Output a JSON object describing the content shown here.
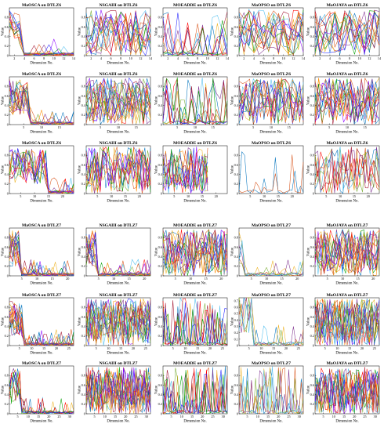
{
  "chart_data": [
    {
      "type": "line",
      "title": "MaOSCA on DTLZ6",
      "xlabel": "Dimension No.",
      "ylabel": "Value",
      "xlim": [
        1,
        14
      ],
      "ylim": [
        0,
        1
      ],
      "xticks": [
        2,
        4,
        6,
        8,
        10,
        12,
        14
      ],
      "yticks": [
        0,
        0.2,
        0.4,
        0.6,
        0.8
      ],
      "series_count": 14,
      "pattern": "drop",
      "first_dims": 3
    },
    {
      "type": "line",
      "title": "NSGAIII on DTLZ6",
      "xlabel": "Dimension No.",
      "ylabel": "Value",
      "xlim": [
        1,
        14
      ],
      "ylim": [
        0,
        1
      ],
      "xticks": [
        2,
        4,
        6,
        8,
        10,
        12,
        14
      ],
      "yticks": [
        0,
        0.2,
        0.4,
        0.6,
        0.8
      ],
      "series_count": 14,
      "pattern": "random"
    },
    {
      "type": "line",
      "title": "MOEADDE on DTLZ6",
      "xlabel": "Dimension No.",
      "ylabel": "Value",
      "xlim": [
        1,
        14
      ],
      "ylim": [
        0,
        1
      ],
      "xticks": [
        2,
        4,
        6,
        8,
        10,
        12,
        14
      ],
      "yticks": [
        0,
        0.2,
        0.4,
        0.6,
        0.8
      ],
      "series_count": 10,
      "pattern": "sparse"
    },
    {
      "type": "line",
      "title": "MaOPSO on DTLZ6",
      "xlabel": "Dimension No.",
      "ylabel": "Value",
      "xlim": [
        1,
        14
      ],
      "ylim": [
        0,
        1
      ],
      "xticks": [
        2,
        4,
        6,
        8,
        10,
        12,
        14
      ],
      "yticks": [
        0,
        0.2,
        0.4,
        0.6,
        0.8
      ],
      "series_count": 14,
      "pattern": "random"
    },
    {
      "type": "line",
      "title": "MaOJAYA on DTLZ6",
      "xlabel": "Dimension No.",
      "ylabel": "Value",
      "xlim": [
        1,
        14
      ],
      "ylim": [
        0,
        1
      ],
      "xticks": [
        2,
        4,
        6,
        8,
        10,
        12,
        14
      ],
      "yticks": [
        0,
        0.2,
        0.4,
        0.6,
        0.8
      ],
      "series_count": 14,
      "pattern": "random"
    },
    {
      "type": "line",
      "title": "MaOSCA on DTLZ6",
      "xlabel": "Dimension No.",
      "ylabel": "Value",
      "xlim": [
        1,
        19
      ],
      "ylim": [
        0,
        1
      ],
      "xticks": [
        5,
        10,
        15
      ],
      "yticks": [
        0,
        0.2,
        0.4,
        0.6,
        0.8
      ],
      "series_count": 16,
      "pattern": "drop",
      "first_dims": 6
    },
    {
      "type": "line",
      "title": "NSGAIII on DTLZ6",
      "xlabel": "Dimension No.",
      "ylabel": "Value",
      "xlim": [
        1,
        19
      ],
      "ylim": [
        0,
        1
      ],
      "xticks": [
        5,
        10,
        15
      ],
      "yticks": [
        0,
        0.2,
        0.4,
        0.6,
        0.8
      ],
      "series_count": 18,
      "pattern": "random"
    },
    {
      "type": "line",
      "title": "MOEADDE on DTLZ6",
      "xlabel": "Dimension No.",
      "ylabel": "Value",
      "xlim": [
        1,
        19
      ],
      "ylim": [
        0,
        1
      ],
      "xticks": [
        5,
        10,
        15
      ],
      "yticks": [
        0,
        0.2,
        0.4,
        0.6,
        0.8
      ],
      "series_count": 10,
      "pattern": "sparse"
    },
    {
      "type": "line",
      "title": "MaOPSO on DTLZ6",
      "xlabel": "Dimension No.",
      "ylabel": "Value",
      "xlim": [
        1,
        19
      ],
      "ylim": [
        0,
        1
      ],
      "xticks": [
        5,
        10,
        15
      ],
      "yticks": [
        0,
        0.2,
        0.4,
        0.6,
        0.8
      ],
      "series_count": 14,
      "pattern": "random"
    },
    {
      "type": "line",
      "title": "MaOJAYA on DTLZ6",
      "xlabel": "Dimension No.",
      "ylabel": "Value",
      "xlim": [
        1,
        19
      ],
      "ylim": [
        0,
        1
      ],
      "xticks": [
        5,
        10,
        15
      ],
      "yticks": [
        0,
        0.2,
        0.4,
        0.6,
        0.8
      ],
      "series_count": 14,
      "pattern": "random"
    },
    {
      "type": "line",
      "title": "MaOSCA on DTLZ6",
      "xlabel": "Dimension No.",
      "ylabel": "Value",
      "xlim": [
        1,
        24
      ],
      "ylim": [
        0,
        1
      ],
      "xticks": [
        5,
        10,
        15,
        20
      ],
      "yticks": [
        0,
        0.2,
        0.4,
        0.6,
        0.8
      ],
      "series_count": 12,
      "pattern": "drop",
      "first_dims": 14
    },
    {
      "type": "line",
      "title": "NSGAIII on DTLZ6",
      "xlabel": "Dimension No.",
      "ylabel": "Value",
      "xlim": [
        1,
        24
      ],
      "ylim": [
        0,
        1
      ],
      "xticks": [
        5,
        10,
        15,
        20
      ],
      "yticks": [
        0,
        0.2,
        0.4,
        0.6,
        0.8
      ],
      "series_count": 12,
      "pattern": "random"
    },
    {
      "type": "line",
      "title": "MOEADDE on DTLZ6",
      "xlabel": "Dimension No.",
      "ylabel": "Value",
      "xlim": [
        1,
        24
      ],
      "ylim": [
        0,
        1
      ],
      "xticks": [
        5,
        10,
        15,
        20
      ],
      "yticks": [
        0,
        0.2,
        0.4,
        0.6,
        0.8
      ],
      "series_count": 12,
      "pattern": "random",
      "stop_at": 17
    },
    {
      "type": "line",
      "title": "MaOPSO on DTLZ6",
      "xlabel": "Dimension No.",
      "ylabel": "Value",
      "xlim": [
        1,
        24
      ],
      "ylim": [
        0,
        1
      ],
      "xticks": [
        5,
        10,
        15,
        20
      ],
      "yticks": [
        0,
        0.2,
        0.4,
        0.6,
        0.8
      ],
      "series_count": 2,
      "pattern": "sparse"
    },
    {
      "type": "line",
      "title": "MaOJAYA on DTLZ6",
      "xlabel": "Dimension No.",
      "ylabel": "Value",
      "xlim": [
        1,
        24
      ],
      "ylim": [
        0,
        1
      ],
      "xticks": [
        5,
        10,
        15,
        20
      ],
      "yticks": [
        0,
        0.2,
        0.4,
        0.6,
        0.8
      ],
      "series_count": 8,
      "pattern": "random"
    },
    {
      "type": "line",
      "title": "MaOSCA on DTLZ7",
      "xlabel": "Dimension No.",
      "ylabel": "Value",
      "xlim": [
        1,
        22
      ],
      "ylim": [
        0,
        1
      ],
      "xticks": [
        5,
        10,
        15,
        20
      ],
      "yticks": [
        0,
        0.2,
        0.4,
        0.6,
        0.8
      ],
      "series_count": 16,
      "pattern": "drop",
      "first_dims": 4
    },
    {
      "type": "line",
      "title": "NSGAIII on DTLZ7",
      "xlabel": "Dimension No.",
      "ylabel": "Value",
      "xlim": [
        1,
        22
      ],
      "ylim": [
        0,
        1
      ],
      "xticks": [
        5,
        10,
        15,
        20
      ],
      "yticks": [
        0,
        0.2,
        0.4,
        0.6,
        0.8
      ],
      "series_count": 16,
      "pattern": "drop",
      "first_dims": 4
    },
    {
      "type": "line",
      "title": "MOEADDE on DTLZ7",
      "xlabel": "Dimension No.",
      "ylabel": "Value",
      "xlim": [
        1,
        22
      ],
      "ylim": [
        0,
        1
      ],
      "xticks": [
        5,
        10,
        15,
        20
      ],
      "yticks": [
        0,
        0.2,
        0.4,
        0.6,
        0.8
      ],
      "series_count": 16,
      "pattern": "random"
    },
    {
      "type": "line",
      "title": "MaOPSO on DTLZ7",
      "xlabel": "Dimension No.",
      "ylabel": "Value",
      "xlim": [
        1,
        22
      ],
      "ylim": [
        0,
        1
      ],
      "xticks": [
        5,
        10,
        15,
        20
      ],
      "yticks": [
        0,
        0.2,
        0.4,
        0.6,
        0.8
      ],
      "series_count": 6,
      "pattern": "drop",
      "first_dims": 2
    },
    {
      "type": "line",
      "title": "MaOJAYA on DTLZ7",
      "xlabel": "Dimension No.",
      "ylabel": "Value",
      "xlim": [
        1,
        22
      ],
      "ylim": [
        0,
        1
      ],
      "xticks": [
        5,
        10,
        15,
        20
      ],
      "yticks": [
        0,
        0.2,
        0.4,
        0.6,
        0.8
      ],
      "series_count": 16,
      "pattern": "random"
    },
    {
      "type": "line",
      "title": "MaOSCA on DTLZ7",
      "xlabel": "Dimension No.",
      "ylabel": "Value",
      "xlim": [
        1,
        27
      ],
      "ylim": [
        0,
        1
      ],
      "xticks": [
        5,
        10,
        15,
        20,
        25
      ],
      "yticks": [
        0,
        0.2,
        0.4,
        0.6,
        0.8
      ],
      "series_count": 16,
      "pattern": "drop",
      "first_dims": 6
    },
    {
      "type": "line",
      "title": "NSGAIII on DTLZ7",
      "xlabel": "Dimension No.",
      "ylabel": "Value",
      "xlim": [
        1,
        27
      ],
      "ylim": [
        0,
        1
      ],
      "xticks": [
        5,
        10,
        15,
        20,
        25
      ],
      "yticks": [
        0,
        0.2,
        0.4,
        0.6,
        0.8
      ],
      "series_count": 18,
      "pattern": "random"
    },
    {
      "type": "line",
      "title": "MOEADDE on DTLZ7",
      "xlabel": "Dimension No.",
      "ylabel": "Value",
      "xlim": [
        1,
        27
      ],
      "ylim": [
        0,
        1
      ],
      "xticks": [
        5,
        10,
        15,
        20,
        25
      ],
      "yticks": [
        0,
        0.2,
        0.4,
        0.6,
        0.8
      ],
      "series_count": 10,
      "pattern": "sparse"
    },
    {
      "type": "line",
      "title": "MaOPSO on DTLZ7",
      "xlabel": "Dimension No.",
      "ylabel": "Value",
      "xlim": [
        1,
        27
      ],
      "ylim": [
        0,
        0.75
      ],
      "xticks": [
        5,
        10,
        15,
        20,
        25
      ],
      "yticks": [
        0,
        0.1,
        0.2,
        0.3,
        0.4,
        0.5,
        0.6,
        0.7
      ],
      "series_count": 6,
      "pattern": "drop",
      "first_dims": 6
    },
    {
      "type": "line",
      "title": "MaOJAYA on DTLZ7",
      "xlabel": "Dimension No.",
      "ylabel": "Value",
      "xlim": [
        1,
        27
      ],
      "ylim": [
        0,
        1
      ],
      "xticks": [
        5,
        10,
        15,
        20,
        25
      ],
      "yticks": [
        0,
        0.2,
        0.4,
        0.6,
        0.8
      ],
      "series_count": 18,
      "pattern": "random"
    },
    {
      "type": "line",
      "title": "MaOSCA on DTLZ7",
      "xlabel": "Dimension No.",
      "ylabel": "Value",
      "xlim": [
        1,
        32
      ],
      "ylim": [
        0,
        1
      ],
      "xticks": [
        5,
        10,
        15,
        20,
        25,
        30
      ],
      "yticks": [
        0,
        0.2,
        0.4,
        0.6,
        0.8
      ],
      "series_count": 10,
      "pattern": "drop",
      "first_dims": 6
    },
    {
      "type": "line",
      "title": "NSGAIII on DTLZ7",
      "xlabel": "Dimension No.",
      "ylabel": "Value",
      "xlim": [
        1,
        32
      ],
      "ylim": [
        0,
        1
      ],
      "xticks": [
        5,
        10,
        15,
        20,
        25,
        30
      ],
      "yticks": [
        0,
        0.2,
        0.4,
        0.6,
        0.8
      ],
      "series_count": 16,
      "pattern": "random"
    },
    {
      "type": "line",
      "title": "MOEADDE on DTLZ7",
      "xlabel": "Dimension No.",
      "ylabel": "Value",
      "xlim": [
        1,
        32
      ],
      "ylim": [
        0,
        1
      ],
      "xticks": [
        5,
        10,
        15,
        20,
        25,
        30
      ],
      "yticks": [
        0,
        0.2,
        0.4,
        0.6,
        0.8
      ],
      "series_count": 10,
      "pattern": "sparse"
    },
    {
      "type": "line",
      "title": "MaOPSO on DTLZ7",
      "xlabel": "Dimension No.",
      "ylabel": "Value",
      "xlim": [
        1,
        32
      ],
      "ylim": [
        0,
        1
      ],
      "xticks": [
        5,
        10,
        15,
        20,
        25,
        30
      ],
      "yticks": [
        0,
        0.2,
        0.4,
        0.6,
        0.8
      ],
      "series_count": 6,
      "pattern": "sparse"
    },
    {
      "type": "line",
      "title": "MaOJAYA on DTLZ7",
      "xlabel": "Dimension No.",
      "ylabel": "Value",
      "xlim": [
        1,
        32
      ],
      "ylim": [
        0,
        1
      ],
      "xticks": [
        5,
        10,
        15,
        20,
        25,
        30
      ],
      "yticks": [
        0,
        0.2,
        0.4,
        0.6,
        0.8
      ],
      "series_count": 14,
      "pattern": "random"
    }
  ],
  "palette": [
    "#0072bd",
    "#d95319",
    "#edb120",
    "#7e2f8e",
    "#77ac30",
    "#4dbeee",
    "#a2142f",
    "#ff0000",
    "#00a000",
    "#1f1fff",
    "#ff8c00",
    "#8b00ff"
  ]
}
